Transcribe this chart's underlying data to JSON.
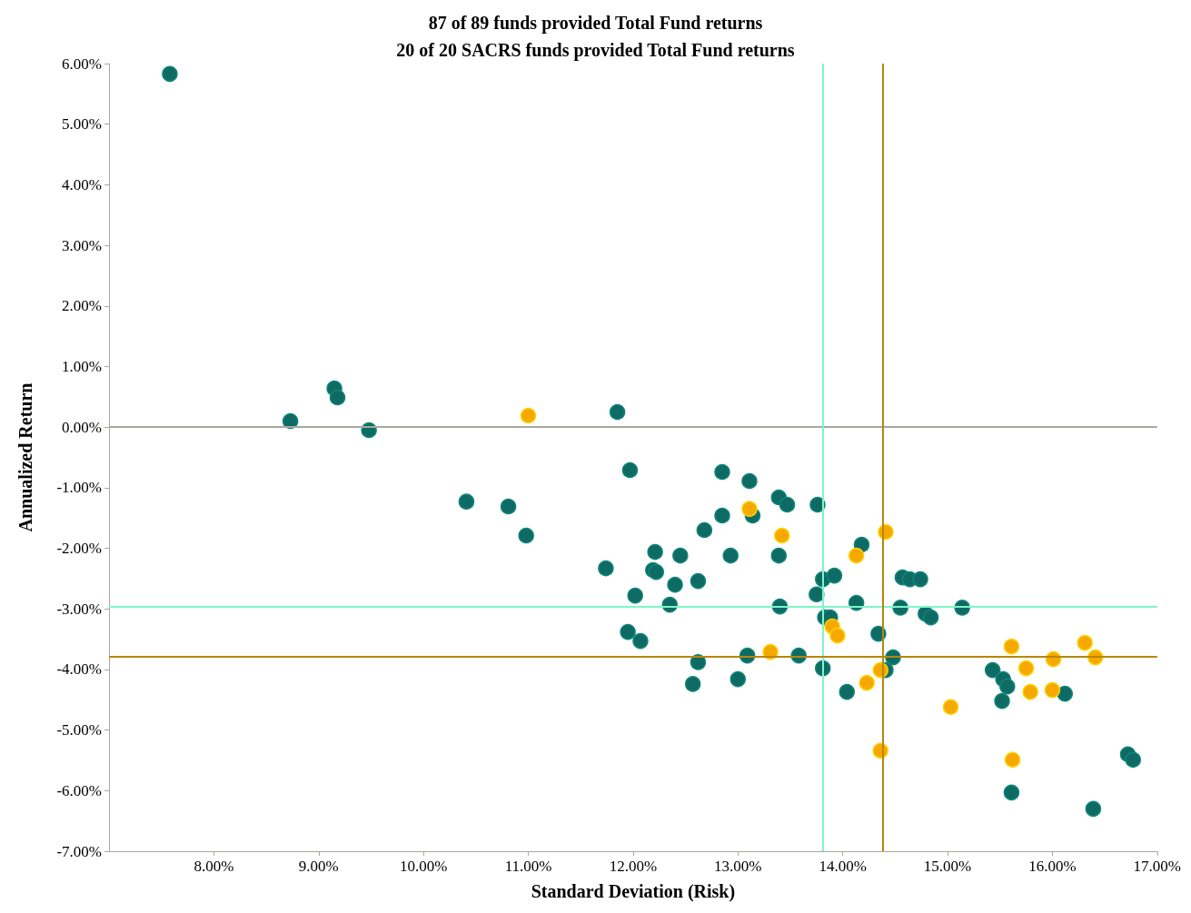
{
  "chart_data": {
    "type": "scatter",
    "title": "87 of 89 funds provided Total Fund returns",
    "subtitle": "20 of 20 SACRS funds provided Total Fund returns",
    "xlabel": "Standard Deviation (Risk)",
    "ylabel": "Annualized Return",
    "xlim": [
      7,
      17
    ],
    "ylim": [
      -7,
      6
    ],
    "xticks": [
      {
        "value": 8,
        "label": "8.00%"
      },
      {
        "value": 9,
        "label": "9.00%"
      },
      {
        "value": 10,
        "label": "10.00%"
      },
      {
        "value": 11,
        "label": "11.00%"
      },
      {
        "value": 12,
        "label": "12.00%"
      },
      {
        "value": 13,
        "label": "13.00%"
      },
      {
        "value": 14,
        "label": "14.00%"
      },
      {
        "value": 15,
        "label": "15.00%"
      },
      {
        "value": 16,
        "label": "16.00%"
      },
      {
        "value": 17,
        "label": "17.00%"
      }
    ],
    "yticks": [
      {
        "value": -7,
        "label": "-7.00%"
      },
      {
        "value": -6,
        "label": "-6.00%"
      },
      {
        "value": -5,
        "label": "-5.00%"
      },
      {
        "value": -4,
        "label": "-4.00%"
      },
      {
        "value": -3,
        "label": "-3.00%"
      },
      {
        "value": -2,
        "label": "-2.00%"
      },
      {
        "value": -1,
        "label": "-1.00%"
      },
      {
        "value": 0,
        "label": "0.00%"
      },
      {
        "value": 1,
        "label": "1.00%"
      },
      {
        "value": 2,
        "label": "2.00%"
      },
      {
        "value": 3,
        "label": "3.00%"
      },
      {
        "value": 4,
        "label": "4.00%"
      },
      {
        "value": 5,
        "label": "5.00%"
      },
      {
        "value": 6,
        "label": "6.00%"
      }
    ],
    "marker": "circle",
    "ref_lines": [
      {
        "axis": "y",
        "value": 0,
        "color": "#a8a8a0"
      },
      {
        "axis": "x",
        "value": 13.81,
        "color": "#7ff5c8"
      },
      {
        "axis": "y",
        "value": -2.96,
        "color": "#7ff5c8"
      },
      {
        "axis": "x",
        "value": 14.38,
        "color": "#b8860b"
      },
      {
        "axis": "y",
        "value": -3.79,
        "color": "#b8860b"
      }
    ],
    "series": [
      {
        "color": "#0e6b63",
        "x": [
          7.58,
          8.73,
          9.15,
          9.18,
          9.48,
          10.41,
          10.81,
          10.98,
          11.85,
          11.97,
          11.74,
          12.02,
          11.95,
          12.07,
          12.21,
          12.19,
          12.22,
          12.45,
          12.4,
          12.35,
          12.62,
          12.68,
          12.62,
          12.57,
          12.85,
          12.85,
          12.93,
          13.11,
          13.14,
          13.09,
          13.0,
          13.39,
          13.47,
          13.39,
          13.4,
          13.58,
          13.76,
          13.75,
          13.81,
          13.92,
          13.83,
          13.88,
          13.81,
          14.13,
          14.18,
          14.34,
          14.41,
          14.48,
          14.04,
          14.57,
          14.64,
          14.74,
          14.55,
          14.79,
          14.84,
          15.14,
          15.43,
          15.53,
          15.57,
          15.52,
          16.12,
          15.61,
          16.39,
          16.72,
          16.77
        ],
        "values": [
          5.83,
          0.1,
          0.64,
          0.49,
          -0.05,
          -1.23,
          -1.31,
          -1.79,
          0.25,
          -0.71,
          -2.33,
          -2.78,
          -3.38,
          -3.53,
          -2.06,
          -2.36,
          -2.39,
          -2.12,
          -2.6,
          -2.93,
          -2.54,
          -1.7,
          -3.88,
          -4.24,
          -0.74,
          -1.46,
          -2.12,
          -0.89,
          -1.46,
          -3.77,
          -4.16,
          -1.16,
          -1.28,
          -2.12,
          -2.96,
          -3.77,
          -1.28,
          -2.76,
          -2.51,
          -2.45,
          -3.14,
          -3.14,
          -3.98,
          -2.9,
          -1.94,
          -3.41,
          -4.01,
          -3.8,
          -4.37,
          -2.48,
          -2.51,
          -2.51,
          -2.98,
          -3.08,
          -3.14,
          -2.98,
          -4.01,
          -4.16,
          -4.28,
          -4.52,
          -4.4,
          -6.03,
          -6.3,
          -5.4,
          -5.49
        ]
      },
      {
        "color": "#f5a900",
        "x": [
          11.0,
          13.11,
          13.42,
          14.41,
          14.13,
          13.9,
          13.95,
          13.31,
          14.36,
          14.23,
          14.36,
          15.03,
          15.61,
          15.75,
          15.79,
          16.01,
          16.0,
          16.31,
          16.41,
          15.62
        ],
        "values": [
          0.19,
          -1.35,
          -1.79,
          -1.73,
          -2.12,
          -3.29,
          -3.44,
          -3.71,
          -4.01,
          -4.22,
          -5.34,
          -4.62,
          -3.62,
          -3.98,
          -4.37,
          -3.83,
          -4.34,
          -3.56,
          -3.8,
          -5.49
        ]
      }
    ]
  }
}
